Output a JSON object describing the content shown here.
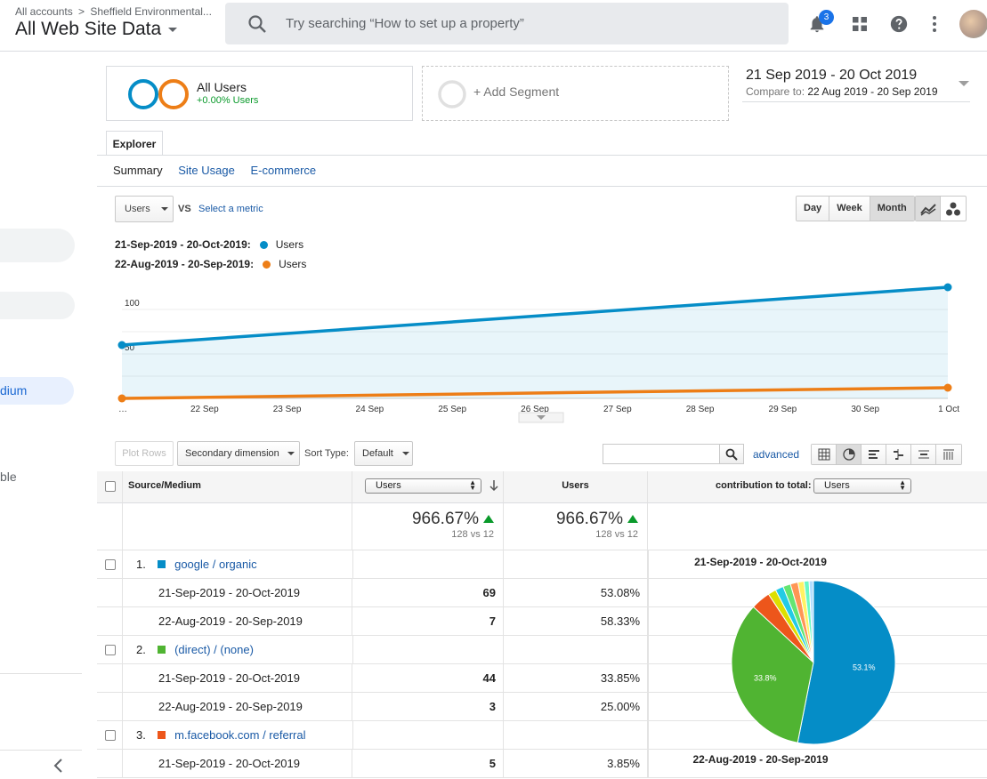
{
  "header": {
    "breadcrumb_root": "All accounts",
    "breadcrumb_sep": ">",
    "breadcrumb_account": "Sheffield Environmental...",
    "view_name": "All Web Site Data",
    "search_placeholder": "Try searching “How to set up a property”",
    "notification_count": "3"
  },
  "sidebar": {
    "partial_item_medium": "dium",
    "partial_item_table": "ble"
  },
  "segments": {
    "segment1_name": "All Users",
    "segment1_sub": "+0.00% Users",
    "segment2_label": "+ Add Segment"
  },
  "date_range": {
    "primary": "21 Sep 2019 - 20 Oct 2019",
    "compare_label": "Compare to:",
    "compare_range": "22 Aug 2019 - 20 Sep 2019"
  },
  "tabs": {
    "explorer": "Explorer",
    "summary": "Summary",
    "site_usage": "Site Usage",
    "ecommerce": "E-commerce"
  },
  "chart_controls": {
    "metric": "Users",
    "vs": "VS",
    "select_metric": "Select a metric",
    "day": "Day",
    "week": "Week",
    "month": "Month"
  },
  "legend": {
    "range1": "21-Sep-2019 - 20-Oct-2019:",
    "range2": "22-Aug-2019 - 20-Sep-2019:",
    "series_label": "Users"
  },
  "colors": {
    "primary_series": "#058dc7",
    "compare_series": "#ed7e17",
    "accent_link": "#1a5aa6",
    "positive": "#0a9a2b"
  },
  "chart_data": {
    "type": "line",
    "x": [
      "…",
      "22 Sep",
      "23 Sep",
      "24 Sep",
      "25 Sep",
      "26 Sep",
      "27 Sep",
      "28 Sep",
      "29 Sep",
      "30 Sep",
      "1 Oct"
    ],
    "y_ticks": [
      "100",
      "50"
    ],
    "ylim": [
      0,
      130
    ],
    "series": [
      {
        "name": "Users",
        "range": "21-Sep-2019 - 20-Oct-2019",
        "color": "#058dc7",
        "start": 60,
        "end": 125,
        "filled": true
      },
      {
        "name": "Users",
        "range": "22-Aug-2019 - 20-Sep-2019",
        "color": "#ed7e17",
        "start": 0,
        "end": 12,
        "filled": false
      }
    ]
  },
  "table_toolbar": {
    "plot_rows": "Plot Rows",
    "secondary_dimension": "Secondary dimension",
    "sort_type_label": "Sort Type:",
    "sort_type": "Default",
    "advanced": "advanced"
  },
  "table": {
    "col_source": "Source/Medium",
    "col_metric_select": "Users",
    "col_users": "Users",
    "col_contribution": "contribution to total:",
    "col_contribution_select": "Users",
    "total_pct_1": "966.67%",
    "total_vs_1": "128 vs 12",
    "total_pct_2": "966.67%",
    "total_vs_2": "128 vs 12",
    "rows": [
      {
        "idx": "1.",
        "name": "google / organic",
        "color": "#058dc7",
        "r1_label": "21-Sep-2019 - 20-Oct-2019",
        "r1_value": "69",
        "r1_pct": "53.08%",
        "r2_label": "22-Aug-2019 - 20-Sep-2019",
        "r2_value": "7",
        "r2_pct": "58.33%"
      },
      {
        "idx": "2.",
        "name": "(direct) / (none)",
        "color": "#50b432",
        "r1_label": "21-Sep-2019 - 20-Oct-2019",
        "r1_value": "44",
        "r1_pct": "33.85%",
        "r2_label": "22-Aug-2019 - 20-Sep-2019",
        "r2_value": "3",
        "r2_pct": "25.00%"
      },
      {
        "idx": "3.",
        "name": "m.facebook.com / referral",
        "color": "#ed561b",
        "r1_label": "21-Sep-2019 - 20-Oct-2019",
        "r1_value": "5",
        "r1_pct": "3.85%"
      }
    ]
  },
  "pie": {
    "title1": "21-Sep-2019 - 20-Oct-2019",
    "title2": "22-Aug-2019 - 20-Sep-2019",
    "label_big": "53.1%",
    "label_second": "33.8%",
    "slices": [
      {
        "value": 53.1,
        "color": "#058dc7"
      },
      {
        "value": 33.8,
        "color": "#50b432"
      },
      {
        "value": 3.85,
        "color": "#ed561b"
      },
      {
        "value": 1.6,
        "color": "#dddf00"
      },
      {
        "value": 1.6,
        "color": "#24cbe5"
      },
      {
        "value": 1.5,
        "color": "#64e572"
      },
      {
        "value": 1.5,
        "color": "#ff9655"
      },
      {
        "value": 1.2,
        "color": "#fff263"
      },
      {
        "value": 1.0,
        "color": "#6af9c4"
      },
      {
        "value": 0.85,
        "color": "#b2deff"
      }
    ]
  }
}
